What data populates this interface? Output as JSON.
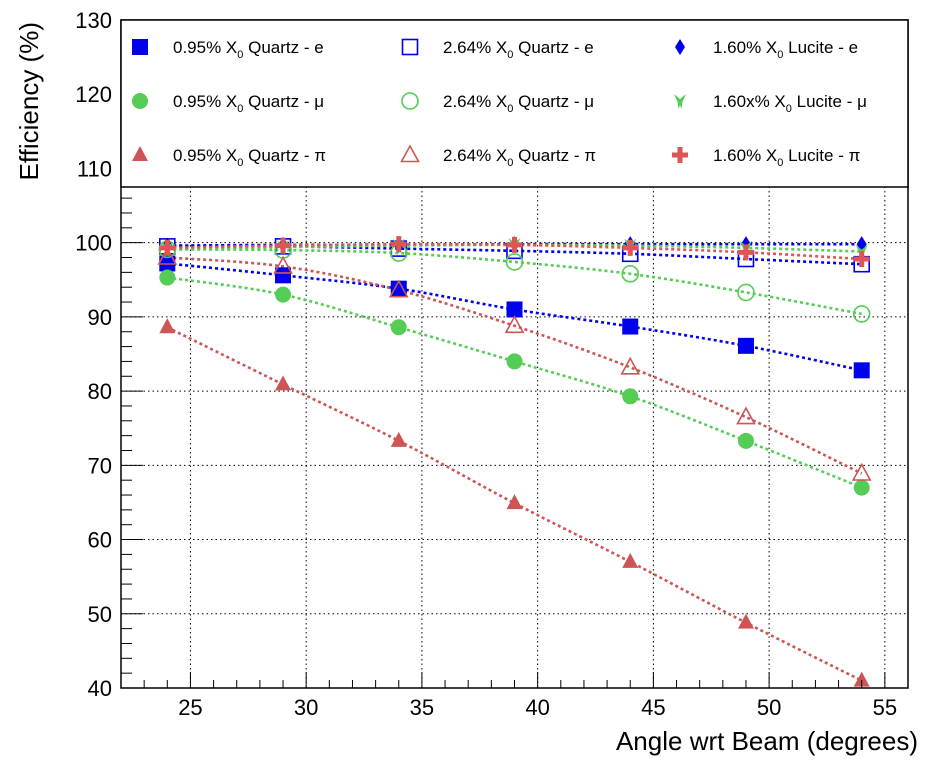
{
  "chart_data": {
    "type": "scatter",
    "title": "",
    "xlabel": "Angle wrt Beam (degrees)",
    "ylabel": "Efficiency (%)",
    "xlim": [
      22,
      56
    ],
    "ylim": [
      40,
      130
    ],
    "xticks": [
      25,
      30,
      35,
      40,
      45,
      50,
      55
    ],
    "yticks": [
      40,
      50,
      60,
      70,
      80,
      90,
      100,
      110,
      120,
      130
    ],
    "grid": true,
    "legend_position": "top, inside frame, 3 columns",
    "x": [
      24,
      29,
      34,
      39,
      44,
      49,
      54
    ],
    "series": [
      {
        "name": "0.95% X0 Quartz - e",
        "label_pre": "0.95% X",
        "label_sub": "0",
        "label_post": " Quartz - e",
        "color": "#0000ee",
        "marker": "square-filled",
        "fit": true,
        "values": [
          97.2,
          95.6,
          93.8,
          91.0,
          88.7,
          86.1,
          82.8
        ]
      },
      {
        "name": "0.95% X0 Quartz - μ",
        "label_pre": "0.95% X",
        "label_sub": "0",
        "label_post": " Quartz - μ",
        "color": "#55cc55",
        "marker": "circle-filled",
        "fit": true,
        "values": [
          95.3,
          93.0,
          88.6,
          84.0,
          79.3,
          73.3,
          67.0
        ]
      },
      {
        "name": "0.95% X0 Quartz - π",
        "label_pre": "0.95% X",
        "label_sub": "0",
        "label_post": " Quartz - π",
        "color": "#cc5555",
        "marker": "triangle-filled",
        "fit": true,
        "values": [
          88.6,
          80.9,
          73.3,
          64.9,
          57.0,
          48.8,
          41.0
        ]
      },
      {
        "name": "2.64% X0 Quartz - e",
        "label_pre": "2.64% X",
        "label_sub": "0",
        "label_post": " Quartz - e",
        "color": "#0000ee",
        "marker": "square-open",
        "fit": true,
        "values": [
          99.5,
          99.5,
          99.2,
          98.9,
          98.5,
          97.8,
          97.1
        ]
      },
      {
        "name": "2.64% X0 Quartz - μ",
        "label_pre": "2.64% X",
        "label_sub": "0",
        "label_post": " Quartz - μ",
        "color": "#55cc55",
        "marker": "circle-open",
        "fit": true,
        "values": [
          99.1,
          99.0,
          98.6,
          97.4,
          95.8,
          93.3,
          90.4
        ]
      },
      {
        "name": "2.64% X0 Quartz - π",
        "label_pre": "2.64% X",
        "label_sub": "0",
        "label_post": " Quartz - π",
        "color": "#cc5555",
        "marker": "triangle-open",
        "fit": true,
        "values": [
          98.0,
          96.8,
          93.6,
          88.8,
          83.2,
          76.5,
          68.9
        ]
      },
      {
        "name": "1.60% X0 Lucite - e",
        "label_pre": "1.60% X",
        "label_sub": "0",
        "label_post": " Lucite - e",
        "color": "#0000ee",
        "marker": "diamond",
        "fit": true,
        "values": [
          99.6,
          99.7,
          99.7,
          99.8,
          99.8,
          99.8,
          99.8
        ]
      },
      {
        "name": "1.60x% X0 Lucite - μ",
        "label_pre": "1.60x% X",
        "label_sub": "0",
        "label_post": " Lucite - μ",
        "color": "#55cc55",
        "marker": "star",
        "fit": true,
        "values": [
          99.2,
          99.4,
          99.6,
          99.7,
          99.6,
          99.3,
          98.8
        ]
      },
      {
        "name": "1.60% X0 Lucite - π",
        "label_pre": "1.60% X",
        "label_sub": "0",
        "label_post": " Lucite - π",
        "color": "#dd5555",
        "marker": "cross",
        "fit": true,
        "values": [
          99.3,
          99.6,
          99.8,
          99.7,
          99.3,
          98.7,
          97.8
        ]
      }
    ]
  }
}
